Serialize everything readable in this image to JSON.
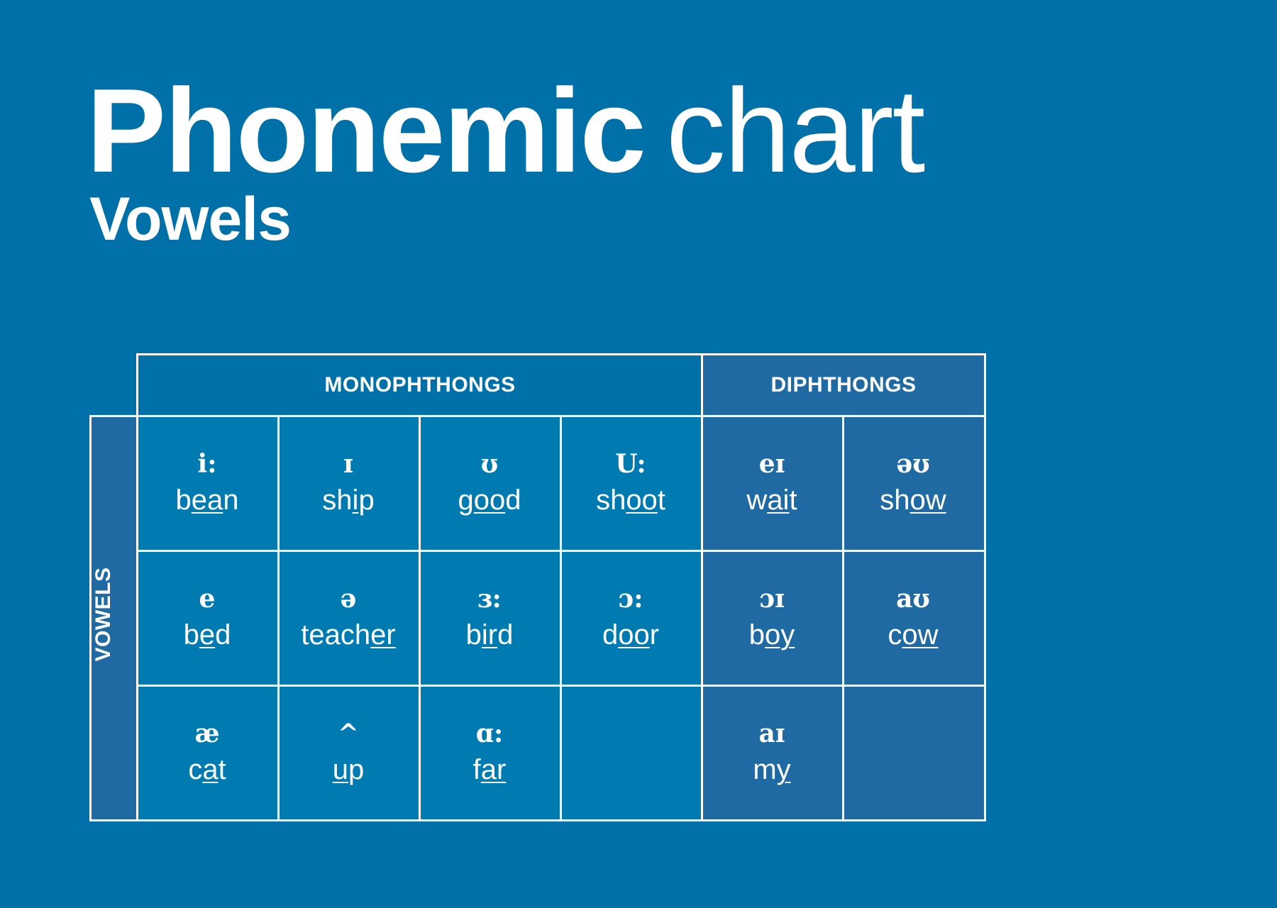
{
  "title": {
    "bold": "Phonemic",
    "light": "chart"
  },
  "subtitle": "Vowels",
  "table": {
    "headers": {
      "monophthongs": "MONOPHTHONGS",
      "diphthongs": "DIPHTHONGS",
      "side": "VOWELS"
    },
    "colors": {
      "background": "#0070a8",
      "monophthong_cell": "#007bb2",
      "diphthong_cell": "#1f6aa3",
      "lines": "#ffffff"
    },
    "rows": [
      [
        {
          "symbol": "i:",
          "pre": "b",
          "ul": "ea",
          "post": "n",
          "group": "mono"
        },
        {
          "symbol": "ɪ",
          "pre": "sh",
          "ul": "i",
          "post": "p",
          "group": "mono"
        },
        {
          "symbol": "ʊ",
          "pre": "g",
          "ul": "oo",
          "post": "d",
          "group": "mono"
        },
        {
          "symbol": "U:",
          "pre": "sh",
          "ul": "oo",
          "post": "t",
          "group": "mono"
        },
        {
          "symbol": "eɪ",
          "pre": "w",
          "ul": "ai",
          "post": "t",
          "group": "diph"
        },
        {
          "symbol": "əʊ",
          "pre": "sh",
          "ul": "ow",
          "post": "",
          "group": "diph"
        }
      ],
      [
        {
          "symbol": "e",
          "pre": "b",
          "ul": "e",
          "post": "d",
          "group": "mono"
        },
        {
          "symbol": "ə",
          "pre": "teach",
          "ul": "er",
          "post": "",
          "group": "mono"
        },
        {
          "symbol": "ɜ:",
          "pre": "b",
          "ul": "ir",
          "post": "d",
          "group": "mono"
        },
        {
          "symbol": "ɔ:",
          "pre": "d",
          "ul": "oo",
          "post": "r",
          "group": "mono"
        },
        {
          "symbol": "ɔɪ",
          "pre": "b",
          "ul": "oy",
          "post": "",
          "group": "diph"
        },
        {
          "symbol": "aʊ",
          "pre": "c",
          "ul": "ow",
          "post": "",
          "group": "diph"
        }
      ],
      [
        {
          "symbol": "æ",
          "pre": "c",
          "ul": "a",
          "post": "t",
          "group": "mono"
        },
        {
          "symbol": "^",
          "pre": "",
          "ul": "u",
          "post": "p",
          "group": "mono"
        },
        {
          "symbol": "ɑ:",
          "pre": "f",
          "ul": "ar",
          "post": "",
          "group": "mono"
        },
        {
          "symbol": "",
          "pre": "",
          "ul": "",
          "post": "",
          "group": "mono"
        },
        {
          "symbol": "aɪ",
          "pre": "m",
          "ul": "y",
          "post": "",
          "group": "diph"
        },
        {
          "symbol": "",
          "pre": "",
          "ul": "",
          "post": "",
          "group": "diph"
        }
      ]
    ]
  }
}
